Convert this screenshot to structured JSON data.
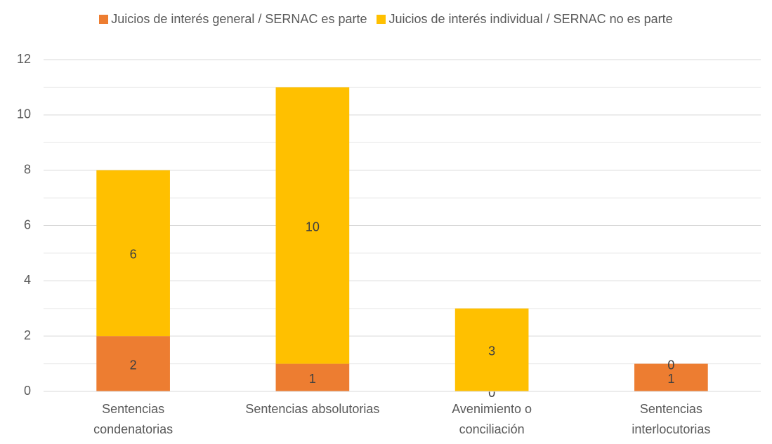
{
  "chart_data": {
    "type": "bar",
    "stacked": true,
    "categories": [
      [
        "Sentencias",
        "condenatorias"
      ],
      [
        "Sentencias absolutorias"
      ],
      [
        "Avenimiento o",
        "conciliación"
      ],
      [
        "Sentencias",
        "interlocutorias"
      ]
    ],
    "series": [
      {
        "name": "Juicios de interés general / SERNAC es parte",
        "color": "#ED7D31",
        "values": [
          2,
          1,
          0,
          1
        ]
      },
      {
        "name": "Juicios de interés individual / SERNAC no es parte",
        "color": "#FFC000",
        "values": [
          6,
          10,
          3,
          0
        ]
      }
    ],
    "ylim": [
      0,
      12
    ],
    "yticks": [
      0,
      2,
      4,
      6,
      8,
      10,
      12
    ],
    "minor_yticks": [
      1,
      3,
      5,
      7,
      9,
      11
    ],
    "grid": true,
    "legend": "top"
  }
}
